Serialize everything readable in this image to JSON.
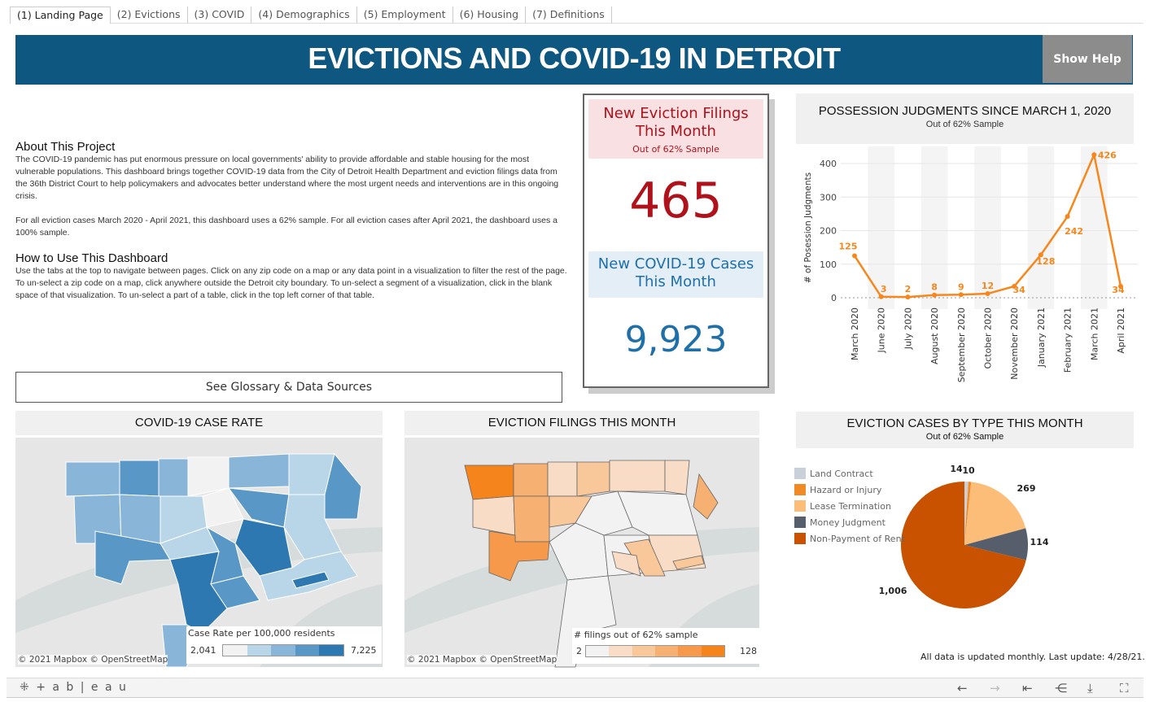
{
  "tabs": [
    "(1) Landing Page",
    "(2) Evictions",
    "(3) COVID",
    "(4) Demographics",
    "(5) Employment",
    "(6) Housing",
    "(7) Definitions"
  ],
  "header": {
    "title": "EVICTIONS AND COVID-19 IN DETROIT",
    "help_label": "Show Help"
  },
  "about": {
    "heading": "About This Project",
    "p1": "The COVID-19 pandemic has put enormous pressure on local governments' ability to provide affordable and stable housing for the most vulnerable populations. This dashboard brings together COVID-19 data from the City of Detroit Health Department and eviction filings data from the 36th District Court to help policymakers and advocates better understand where the most urgent needs and interventions are in this ongoing crisis.",
    "p2": "For all eviction cases March 2020 - April 2021, this dashboard uses a 62% sample. For all eviction cases after April 2021, the dashboard uses a 100% sample.",
    "howto_heading": "How to Use This Dashboard",
    "howto": "Use the tabs at the top to navigate between pages. Click on any zip code on a map or any data point in a visualization to filter the rest of the page. To un-select a zip code on a map, click anywhere outside the Detroit city boundary. To un-select a segment of a visualization, click in the blank space of that visualization. To un-select a part of a table, click in the top left corner of that table."
  },
  "glossary_label": "See Glossary & Data Sources",
  "kpi": {
    "filings_title": "New Eviction Filings This Month",
    "filings_sub": "Out of 62% Sample",
    "filings_value": "465",
    "covid_title": "New COVID-19 Cases This Month",
    "covid_value": "9,923",
    "colors": {
      "filings": "#b0121b",
      "covid": "#1f6fa8"
    }
  },
  "chart_data": [
    {
      "type": "line",
      "title": "POSSESSION JUDGMENTS SINCE MARCH 1, 2020",
      "subtitle": "Out of 62% Sample",
      "ylabel": "# of Posession Judgments",
      "xlabel": "",
      "categories": [
        "March 2020",
        "June 2020",
        "July 2020",
        "August 2020",
        "September 2020",
        "October 2020",
        "November 2020",
        "January 2021",
        "February 2021",
        "March 2021",
        "April 2021"
      ],
      "values": [
        125,
        3,
        2,
        8,
        9,
        12,
        34,
        128,
        242,
        426,
        34
      ],
      "yticks": [
        0,
        100,
        200,
        300,
        400
      ],
      "ylim": [
        -30,
        450
      ],
      "color": "#f7861c",
      "grid": true
    },
    {
      "type": "pie",
      "title": "EVICTION CASES BY TYPE THIS MONTH",
      "subtitle": "Out of 62% Sample",
      "legend": "top-left",
      "slices": [
        {
          "name": "Land Contract",
          "value": 14,
          "label": "14",
          "color": "#c9d0d9"
        },
        {
          "name": "Hazard or Injury",
          "value": 10,
          "label": "10",
          "color": "#f08a24"
        },
        {
          "name": "Lease Termination",
          "value": 269,
          "label": "269",
          "color": "#fbbd78"
        },
        {
          "name": "Money Judgment",
          "value": 114,
          "label": "114",
          "color": "#565e6c"
        },
        {
          "name": "Non-Payment of Rent",
          "value": 1006,
          "label": "1,006",
          "color": "#c85200"
        }
      ]
    }
  ],
  "maps": {
    "covid": {
      "title": "COVID-19 CASE RATE",
      "legend_title": "Case Rate per 100,000 residents",
      "min": "2,041",
      "max": "7,225",
      "colors": [
        "#f2f2f2",
        "#b9d5e8",
        "#88b5d8",
        "#5897c6",
        "#2e78b2"
      ],
      "attribution": "© 2021 Mapbox  © OpenStreetMap"
    },
    "evictions": {
      "title": "EVICTION FILINGS THIS MONTH",
      "legend_title": "# filings out of 62% sample",
      "min": "2",
      "max": "128",
      "colors": [
        "#f2f2f2",
        "#f9dcc5",
        "#f8c79a",
        "#f6b072",
        "#f6994a",
        "#f6841d"
      ],
      "attribution": "© 2021 Mapbox  © OpenStreetMap"
    }
  },
  "footer": "All data is updated monthly. Last update: 4/28/21.",
  "toolbar": {
    "logo": "+ a b | e a u"
  }
}
